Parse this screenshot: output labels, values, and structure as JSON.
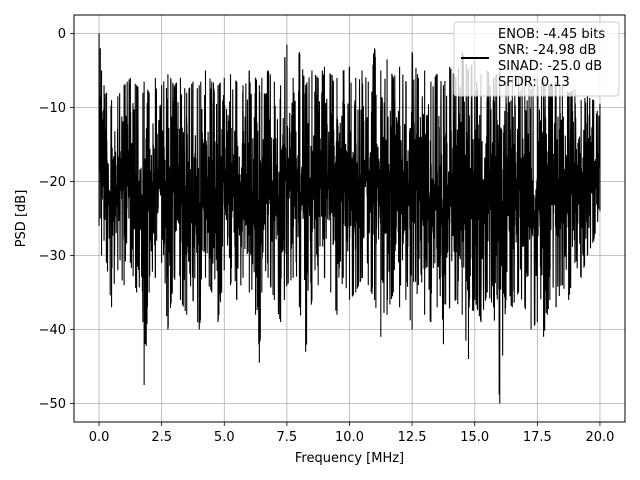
{
  "chart_data": {
    "type": "line",
    "xlabel": "Frequency [MHz]",
    "ylabel": "PSD [dB]",
    "xlim": [
      -1.0,
      21.0
    ],
    "ylim": [
      -52.5,
      2.5
    ],
    "x_ticks": [
      0.0,
      2.5,
      5.0,
      7.5,
      10.0,
      12.5,
      15.0,
      17.5,
      20.0
    ],
    "x_tick_labels": [
      "0.0",
      "2.5",
      "5.0",
      "7.5",
      "10.0",
      "12.5",
      "15.0",
      "17.5",
      "20.0"
    ],
    "y_ticks": [
      0,
      -10,
      -20,
      -30,
      -40,
      -50
    ],
    "y_tick_labels": [
      "0",
      "−10",
      "−20",
      "−30",
      "−40",
      "−50"
    ],
    "grid": true,
    "legend_position": "top-right",
    "legend_text": [
      "ENOB: -4.45 bits",
      "SNR: -24.98 dB",
      "SINAD: -25.0 dB",
      "SFDR: 0.13"
    ],
    "line_color": "#000000",
    "series": [
      {
        "x": [
          0.0,
          0.05,
          0.1,
          0.2,
          0.3,
          0.5,
          0.75,
          1.0,
          1.25,
          1.5,
          1.75,
          1.8,
          2.0,
          2.25,
          2.5,
          2.75,
          3.0,
          3.25,
          3.5,
          3.75,
          4.0,
          4.25,
          4.5,
          4.75,
          5.0,
          5.25,
          5.5,
          5.75,
          6.0,
          6.25,
          6.4,
          6.5,
          6.75,
          7.0,
          7.25,
          7.5,
          7.75,
          8.0,
          8.25,
          8.5,
          8.75,
          9.0,
          9.25,
          9.5,
          9.75,
          10.0,
          10.25,
          10.5,
          10.75,
          11.0,
          11.25,
          11.5,
          11.75,
          12.0,
          12.25,
          12.5,
          12.75,
          13.0,
          13.25,
          13.5,
          13.75,
          14.0,
          14.25,
          14.5,
          14.75,
          15.0,
          15.25,
          15.5,
          15.75,
          16.0,
          16.25,
          16.5,
          16.75,
          17.0,
          17.25,
          17.5,
          17.75,
          18.0,
          18.25,
          18.5,
          18.75,
          19.0,
          19.25,
          19.5,
          19.75,
          20.0
        ],
        "y_upper": [
          0.0,
          -2.0,
          -5.0,
          -7.0,
          -8.0,
          -9.0,
          -8.5,
          -7.0,
          -6.0,
          -7.0,
          -8.0,
          -6.5,
          -8.0,
          -6.0,
          -7.0,
          -5.5,
          -7.0,
          -6.0,
          -8.0,
          -6.5,
          -7.0,
          -5.0,
          -6.5,
          -7.0,
          -6.0,
          -5.5,
          -6.5,
          -7.0,
          -5.0,
          -6.0,
          -7.0,
          -6.0,
          -5.0,
          -6.5,
          -7.0,
          -1.5,
          -6.0,
          -2.5,
          -7.0,
          -5.0,
          -6.0,
          -4.5,
          -5.5,
          -6.0,
          -5.0,
          -4.5,
          -6.0,
          -5.0,
          -6.5,
          -2.0,
          -5.0,
          -3.5,
          -6.0,
          -4.5,
          -6.5,
          -2.5,
          -6.0,
          -5.0,
          -6.5,
          -5.5,
          -7.0,
          -4.5,
          -6.0,
          -2.5,
          -5.0,
          -3.5,
          -5.5,
          -5.0,
          -6.0,
          -5.0,
          -6.5,
          -6.0,
          -6.0,
          -5.5,
          -7.5,
          -6.0,
          -6.5,
          -7.0,
          -6.5,
          -7.0,
          -8.0,
          -7.5,
          -9.0,
          -8.5,
          -9.0,
          -9.5
        ],
        "y_lower": [
          -26.0,
          -25.0,
          -30.0,
          -28.0,
          -31.0,
          -37.0,
          -32.0,
          -34.0,
          -31.0,
          -35.0,
          -39.0,
          -47.5,
          -35.0,
          -33.0,
          -31.0,
          -40.0,
          -33.0,
          -36.0,
          -38.0,
          -36.0,
          -40.0,
          -33.0,
          -35.0,
          -39.0,
          -32.0,
          -34.0,
          -36.0,
          -33.0,
          -35.0,
          -38.0,
          -44.5,
          -35.0,
          -33.0,
          -36.0,
          -39.0,
          -34.0,
          -33.0,
          -37.0,
          -43.0,
          -36.0,
          -34.0,
          -33.0,
          -35.0,
          -38.0,
          -33.0,
          -36.0,
          -35.0,
          -33.0,
          -34.0,
          -36.0,
          -41.0,
          -38.0,
          -35.0,
          -37.0,
          -36.0,
          -40.0,
          -34.0,
          -38.0,
          -39.0,
          -37.0,
          -42.0,
          -37.0,
          -36.0,
          -38.0,
          -44.0,
          -36.0,
          -39.0,
          -35.0,
          -37.0,
          -50.0,
          -36.0,
          -37.0,
          -35.0,
          -37.0,
          -40.0,
          -39.0,
          -41.0,
          -36.0,
          -37.0,
          -34.0,
          -36.0,
          -31.0,
          -33.0,
          -30.0,
          -28.0,
          -24.0
        ]
      }
    ]
  }
}
